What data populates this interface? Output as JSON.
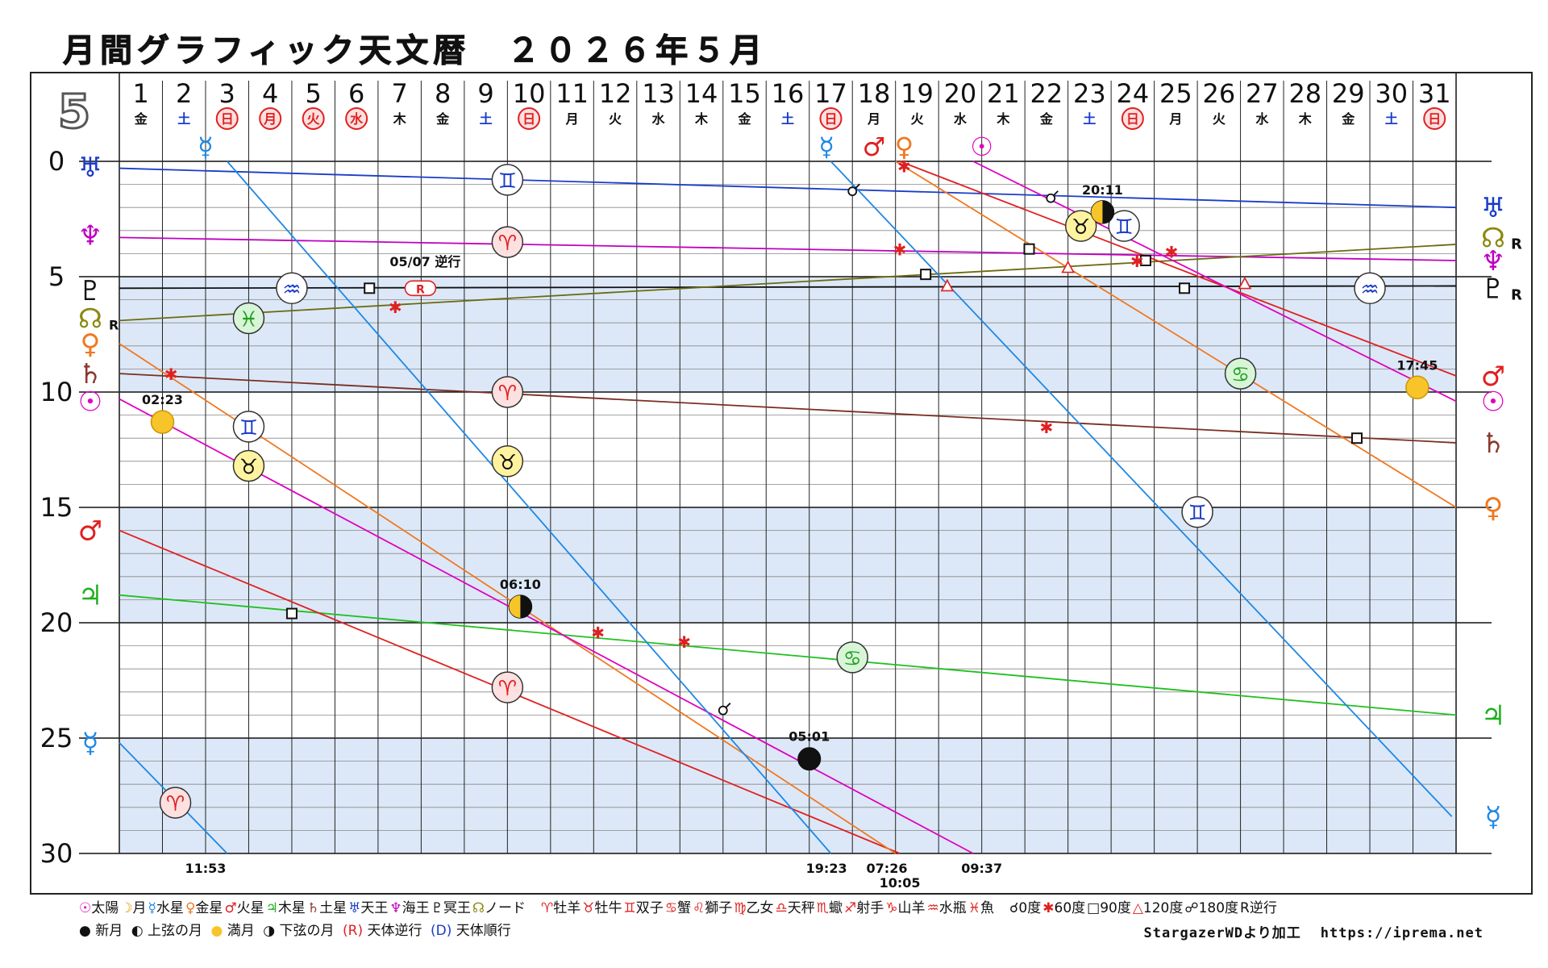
{
  "title": "月間グラフィック天文暦　２０２６年５月",
  "month_badge": "5",
  "credit": {
    "source": "StargazerWDより加工",
    "url": "https://iprema.net"
  },
  "legend": {
    "planets": [
      {
        "glyph": "☉",
        "name": "太陽",
        "color": "#e000c0"
      },
      {
        "glyph": "☽",
        "name": "月",
        "color": "#e0a000"
      },
      {
        "glyph": "☿",
        "name": "水星",
        "color": "#1e88e5"
      },
      {
        "glyph": "♀",
        "name": "金星",
        "color": "#f07820"
      },
      {
        "glyph": "♂",
        "name": "火星",
        "color": "#e02020"
      },
      {
        "glyph": "♃",
        "name": "木星",
        "color": "#20b020"
      },
      {
        "glyph": "♄",
        "name": "土星",
        "color": "#8b3a2a"
      },
      {
        "glyph": "♅",
        "name": "天王",
        "color": "#1a3cc8"
      },
      {
        "glyph": "♆",
        "name": "海王",
        "color": "#c000c0"
      },
      {
        "glyph": "♇",
        "name": "冥王",
        "color": "#111111"
      },
      {
        "glyph": "☊",
        "name": "ノード",
        "color": "#8a8a10"
      }
    ],
    "signs": [
      {
        "glyph": "♈",
        "name": "牡羊"
      },
      {
        "glyph": "♉",
        "name": "牡牛"
      },
      {
        "glyph": "♊",
        "name": "双子"
      },
      {
        "glyph": "♋",
        "name": "蟹"
      },
      {
        "glyph": "♌",
        "name": "獅子"
      },
      {
        "glyph": "♍",
        "name": "乙女"
      },
      {
        "glyph": "♎",
        "name": "天秤"
      },
      {
        "glyph": "♏",
        "name": "蠍"
      },
      {
        "glyph": "♐",
        "name": "射手"
      },
      {
        "glyph": "♑",
        "name": "山羊"
      },
      {
        "glyph": "♒",
        "name": "水瓶"
      },
      {
        "glyph": "♓",
        "name": "魚"
      }
    ],
    "aspects": [
      {
        "glyph": "☌",
        "name": "0度"
      },
      {
        "glyph": "✱",
        "name": "60度"
      },
      {
        "glyph": "□",
        "name": "90度"
      },
      {
        "glyph": "△",
        "name": "120度"
      },
      {
        "glyph": "☍",
        "name": "180度"
      },
      {
        "glyph": "R",
        "name": "逆行"
      }
    ],
    "moons": [
      {
        "symbol": "new",
        "name": "新月"
      },
      {
        "symbol": "first",
        "name": "上弦の月"
      },
      {
        "symbol": "full",
        "name": "満月"
      },
      {
        "symbol": "last",
        "name": "下弦の月"
      }
    ],
    "motion": [
      {
        "glyph": "R",
        "name": "天体逆行",
        "color": "#e02020"
      },
      {
        "glyph": "D",
        "name": "天体順行",
        "color": "#1a3cc8"
      }
    ]
  },
  "chart_data": {
    "type": "line",
    "x_unit": "day of May 2026",
    "xlim": [
      1,
      32
    ],
    "ylim": [
      0,
      30
    ],
    "y_ticks": [
      0,
      5,
      10,
      15,
      20,
      25,
      30
    ],
    "shaded_bands": [
      [
        5,
        10
      ],
      [
        15,
        20
      ],
      [
        25,
        30
      ]
    ],
    "days": [
      {
        "d": "1",
        "w": "金",
        "t": "n"
      },
      {
        "d": "2",
        "w": "土",
        "t": "sat"
      },
      {
        "d": "3",
        "w": "日",
        "t": "hol"
      },
      {
        "d": "4",
        "w": "月",
        "t": "hol"
      },
      {
        "d": "5",
        "w": "火",
        "t": "hol"
      },
      {
        "d": "6",
        "w": "水",
        "t": "hol"
      },
      {
        "d": "7",
        "w": "木",
        "t": "n"
      },
      {
        "d": "8",
        "w": "金",
        "t": "n"
      },
      {
        "d": "9",
        "w": "土",
        "t": "sat"
      },
      {
        "d": "10",
        "w": "日",
        "t": "hol"
      },
      {
        "d": "11",
        "w": "月",
        "t": "n"
      },
      {
        "d": "12",
        "w": "火",
        "t": "n"
      },
      {
        "d": "13",
        "w": "水",
        "t": "n"
      },
      {
        "d": "14",
        "w": "木",
        "t": "n"
      },
      {
        "d": "15",
        "w": "金",
        "t": "n"
      },
      {
        "d": "16",
        "w": "土",
        "t": "sat"
      },
      {
        "d": "17",
        "w": "日",
        "t": "hol"
      },
      {
        "d": "18",
        "w": "月",
        "t": "n"
      },
      {
        "d": "19",
        "w": "火",
        "t": "n"
      },
      {
        "d": "20",
        "w": "水",
        "t": "n"
      },
      {
        "d": "21",
        "w": "木",
        "t": "n"
      },
      {
        "d": "22",
        "w": "金",
        "t": "n"
      },
      {
        "d": "23",
        "w": "土",
        "t": "sat"
      },
      {
        "d": "24",
        "w": "日",
        "t": "hol"
      },
      {
        "d": "25",
        "w": "月",
        "t": "n"
      },
      {
        "d": "26",
        "w": "火",
        "t": "n"
      },
      {
        "d": "27",
        "w": "水",
        "t": "n"
      },
      {
        "d": "28",
        "w": "木",
        "t": "n"
      },
      {
        "d": "29",
        "w": "金",
        "t": "n"
      },
      {
        "d": "30",
        "w": "土",
        "t": "sat"
      },
      {
        "d": "31",
        "w": "日",
        "t": "hol"
      }
    ],
    "left_labels": [
      {
        "glyph": "♅",
        "y": 0.25,
        "color": "#1a3cc8"
      },
      {
        "glyph": "♆",
        "y": 3.2,
        "color": "#c000c0"
      },
      {
        "glyph": "♇",
        "y": 5.6,
        "color": "#111111"
      },
      {
        "glyph": "☊",
        "y": 6.8,
        "color": "#8a8a10",
        "suffix": "R"
      },
      {
        "glyph": "♀",
        "y": 7.9,
        "color": "#f07820"
      },
      {
        "glyph": "♄",
        "y": 9.2,
        "color": "#8b3a2a"
      },
      {
        "glyph": "☉",
        "y": 10.4,
        "color": "#e000c0"
      },
      {
        "glyph": "♂",
        "y": 16.0,
        "color": "#e02020"
      },
      {
        "glyph": "♃",
        "y": 18.8,
        "color": "#20b020"
      },
      {
        "glyph": "☿",
        "y": 25.2,
        "color": "#1e88e5"
      }
    ],
    "right_labels": [
      {
        "glyph": "♅",
        "y": 2.0,
        "color": "#1a3cc8"
      },
      {
        "glyph": "☊",
        "y": 3.3,
        "color": "#8a8a10",
        "suffix": "R"
      },
      {
        "glyph": "♆",
        "y": 4.3,
        "color": "#c000c0"
      },
      {
        "glyph": "♇",
        "y": 5.5,
        "color": "#111111",
        "suffix": "R"
      },
      {
        "glyph": "♂",
        "y": 9.3,
        "color": "#e02020"
      },
      {
        "glyph": "☉",
        "y": 10.4,
        "color": "#e000c0"
      },
      {
        "glyph": "♄",
        "y": 12.2,
        "color": "#8b3a2a"
      },
      {
        "glyph": "♀",
        "y": 15.0,
        "color": "#f07820"
      },
      {
        "glyph": "♃",
        "y": 24.0,
        "color": "#20b020"
      },
      {
        "glyph": "☿",
        "y": 28.4,
        "color": "#1e88e5"
      }
    ],
    "top_markers": [
      {
        "glyph": "☿",
        "x": 3.0,
        "color": "#1e88e5"
      },
      {
        "glyph": "☿",
        "x": 17.4,
        "color": "#1e88e5"
      },
      {
        "glyph": "♂",
        "x": 18.5,
        "color": "#e02020"
      },
      {
        "glyph": "♀",
        "x": 19.2,
        "color": "#f07820"
      },
      {
        "glyph": "☉",
        "x": 21.0,
        "color": "#e000c0"
      }
    ],
    "series": [
      {
        "name": "♅",
        "color": "#1a3cc8",
        "points": [
          [
            1,
            0.3
          ],
          [
            32,
            2.0
          ]
        ]
      },
      {
        "name": "♆",
        "color": "#c000c0",
        "points": [
          [
            1,
            3.3
          ],
          [
            32,
            4.3
          ]
        ]
      },
      {
        "name": "♇",
        "color": "#111111",
        "points": [
          [
            1,
            5.5
          ],
          [
            32,
            5.4
          ]
        ]
      },
      {
        "name": "☊",
        "color": "#6b6b10",
        "points": [
          [
            1,
            6.9
          ],
          [
            32,
            3.6
          ]
        ]
      },
      {
        "name": "♄",
        "color": "#7a2e22",
        "points": [
          [
            1,
            9.2
          ],
          [
            32,
            12.2
          ]
        ]
      },
      {
        "name": "♃",
        "color": "#20c020",
        "points": [
          [
            1,
            18.8
          ],
          [
            32,
            24.0
          ]
        ]
      },
      {
        "name": "♂",
        "color": "#e02020",
        "points": [
          [
            1,
            16.0
          ],
          [
            19.1,
            30.0
          ]
        ]
      },
      {
        "name": "♂",
        "color": "#e02020",
        "points": [
          [
            19.1,
            0.0
          ],
          [
            32,
            9.3
          ]
        ]
      },
      {
        "name": "♀",
        "color": "#f07820",
        "points": [
          [
            1,
            7.9
          ],
          [
            19.0,
            30.0
          ]
        ]
      },
      {
        "name": "♀",
        "color": "#f07820",
        "points": [
          [
            19.0,
            0.0
          ],
          [
            32,
            15.0
          ]
        ]
      },
      {
        "name": "☉",
        "color": "#e000c0",
        "points": [
          [
            1,
            10.3
          ],
          [
            20.8,
            30.0
          ]
        ]
      },
      {
        "name": "☉",
        "color": "#e000c0",
        "points": [
          [
            20.8,
            0.0
          ],
          [
            32,
            10.4
          ]
        ]
      },
      {
        "name": "☿",
        "color": "#1e88e5",
        "points": [
          [
            1,
            25.2
          ],
          [
            3.5,
            30.0
          ]
        ]
      },
      {
        "name": "☿",
        "color": "#1e88e5",
        "points": [
          [
            3.5,
            0.0
          ],
          [
            17.5,
            30.0
          ]
        ]
      },
      {
        "name": "☿",
        "color": "#1e88e5",
        "points": [
          [
            17.5,
            0.0
          ],
          [
            31.9,
            28.4
          ]
        ]
      }
    ],
    "sign_marks": [
      {
        "glyph": "♊",
        "x": 10.0,
        "y": 0.8,
        "fill": "#ffffff",
        "color": "#1a3cc8"
      },
      {
        "glyph": "♈",
        "x": 10.0,
        "y": 3.5,
        "fill": "#fde0e0",
        "color": "#e02020"
      },
      {
        "glyph": "♈",
        "x": 10.0,
        "y": 10.0,
        "fill": "#fde0e0",
        "color": "#e02020"
      },
      {
        "glyph": "♉",
        "x": 10.0,
        "y": 13.0,
        "fill": "#fff3a0",
        "color": "#111111"
      },
      {
        "glyph": "♈",
        "x": 10.0,
        "y": 22.8,
        "fill": "#fde0e0",
        "color": "#e02020"
      },
      {
        "glyph": "♒",
        "x": 5.0,
        "y": 5.5,
        "fill": "#ffffff",
        "color": "#1a3cc8"
      },
      {
        "glyph": "♓",
        "x": 4.0,
        "y": 6.8,
        "fill": "#d8f5d8",
        "color": "#20a020"
      },
      {
        "glyph": "♊",
        "x": 4.0,
        "y": 11.5,
        "fill": "#ffffff",
        "color": "#1a3cc8"
      },
      {
        "glyph": "♉",
        "x": 4.0,
        "y": 13.2,
        "fill": "#fff3a0",
        "color": "#111111"
      },
      {
        "glyph": "♈",
        "x": 2.3,
        "y": 27.8,
        "fill": "#fde0e0",
        "color": "#e02020"
      },
      {
        "glyph": "♋",
        "x": 18.0,
        "y": 21.5,
        "fill": "#d8f5d8",
        "color": "#20a020"
      },
      {
        "glyph": "♉",
        "x": 23.3,
        "y": 2.8,
        "fill": "#fff3a0",
        "color": "#111111"
      },
      {
        "glyph": "♊",
        "x": 24.3,
        "y": 2.8,
        "fill": "#ffffff",
        "color": "#1a3cc8"
      },
      {
        "glyph": "♋",
        "x": 27.0,
        "y": 9.2,
        "fill": "#d8f5d8",
        "color": "#20a020"
      },
      {
        "glyph": "♊",
        "x": 26.0,
        "y": 15.2,
        "fill": "#ffffff",
        "color": "#1a3cc8"
      },
      {
        "glyph": "♒",
        "x": 30.0,
        "y": 5.5,
        "fill": "#ffffff",
        "color": "#1a3cc8"
      }
    ],
    "aspect_marks": [
      {
        "type": "square",
        "x": 6.8,
        "y": 5.5
      },
      {
        "type": "square",
        "x": 5.0,
        "y": 19.6
      },
      {
        "type": "square",
        "x": 19.7,
        "y": 4.9
      },
      {
        "type": "square",
        "x": 22.1,
        "y": 3.8
      },
      {
        "type": "square",
        "x": 24.8,
        "y": 4.3
      },
      {
        "type": "square",
        "x": 25.7,
        "y": 5.5
      },
      {
        "type": "square",
        "x": 29.7,
        "y": 12.0
      },
      {
        "type": "sextile",
        "x": 7.4,
        "y": 6.3
      },
      {
        "type": "sextile",
        "x": 2.2,
        "y": 9.2
      },
      {
        "type": "sextile",
        "x": 12.1,
        "y": 20.4
      },
      {
        "type": "sextile",
        "x": 14.1,
        "y": 20.8
      },
      {
        "type": "sextile",
        "x": 19.2,
        "y": 0.2
      },
      {
        "type": "sextile",
        "x": 19.1,
        "y": 3.8
      },
      {
        "type": "sextile",
        "x": 22.5,
        "y": 11.5
      },
      {
        "type": "sextile",
        "x": 24.6,
        "y": 4.3
      },
      {
        "type": "sextile",
        "x": 25.4,
        "y": 3.9
      },
      {
        "type": "trine",
        "x": 20.2,
        "y": 5.4
      },
      {
        "type": "trine",
        "x": 23.0,
        "y": 4.6
      },
      {
        "type": "trine",
        "x": 27.1,
        "y": 5.3
      },
      {
        "type": "opposition",
        "x": 18.0,
        "y": 1.3
      },
      {
        "type": "opposition",
        "x": 22.6,
        "y": 1.6
      },
      {
        "type": "opposition",
        "x": 15.0,
        "y": 23.8
      }
    ],
    "moon_phases": [
      {
        "phase": "full",
        "x": 2.0,
        "y": 11.3,
        "label": "02:23"
      },
      {
        "phase": "first",
        "x": 10.3,
        "y": 19.3,
        "label": "06:10"
      },
      {
        "phase": "new",
        "x": 17.0,
        "y": 25.9,
        "label": "05:01"
      },
      {
        "phase": "last",
        "x": 23.8,
        "y": 2.2,
        "label": "20:11"
      },
      {
        "phase": "full",
        "x": 31.1,
        "y": 9.8,
        "label": "17:45"
      }
    ],
    "retrograde_note": {
      "x": 8.0,
      "label": "05/07 逆行",
      "badge": "R"
    },
    "bottom_times": [
      {
        "x": 3.0,
        "label": "11:53",
        "row": 0
      },
      {
        "x": 17.4,
        "label": "19:23",
        "row": 0
      },
      {
        "x": 18.8,
        "label": "07:26",
        "row": 0
      },
      {
        "x": 19.1,
        "label": "10:05",
        "row": 1
      },
      {
        "x": 21.0,
        "label": "09:37",
        "row": 0
      }
    ]
  }
}
